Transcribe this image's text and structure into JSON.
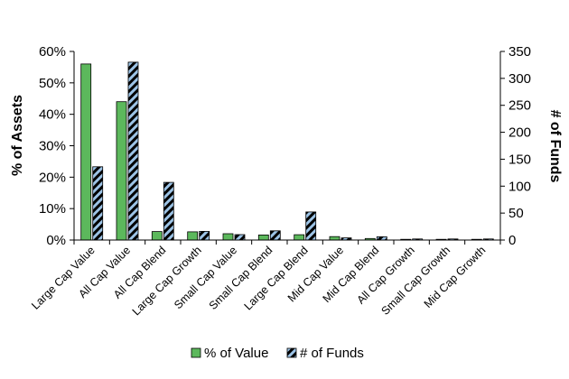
{
  "chart_data": {
    "type": "bar",
    "title": "",
    "ylabel": "% of Assets",
    "y2label": "# of Funds",
    "ylim": [
      0,
      60
    ],
    "y2lim": [
      0,
      350
    ],
    "yticks": [
      "0%",
      "10%",
      "20%",
      "30%",
      "40%",
      "50%",
      "60%"
    ],
    "y2ticks": [
      "0",
      "50",
      "100",
      "150",
      "200",
      "250",
      "300",
      "350"
    ],
    "categories": [
      "Large Cap Value",
      "All Cap Value",
      "All Cap Blend",
      "Large Cap Growth",
      "Small Cap Value",
      "Small Cap Blend",
      "Large Cap Blend",
      "Mid Cap Value",
      "Mid Cap Blend",
      "All Cap Growth",
      "Small Cap Growth",
      "Mid Cap Growth"
    ],
    "series": [
      {
        "name": "% of Value",
        "axis": "left",
        "color": "#5cb85c",
        "values": [
          56,
          44,
          2.7,
          2.6,
          2.0,
          1.6,
          1.7,
          1.1,
          0.5,
          0.2,
          0.2,
          0.2
        ]
      },
      {
        "name": "# of Funds",
        "axis": "right",
        "color": "#000000",
        "pattern": "diagonal-stripes-blue",
        "values": [
          136,
          330,
          107,
          16,
          10,
          17,
          52,
          4,
          6,
          2,
          2,
          2
        ]
      }
    ],
    "legend": "bottom",
    "grid": false
  }
}
